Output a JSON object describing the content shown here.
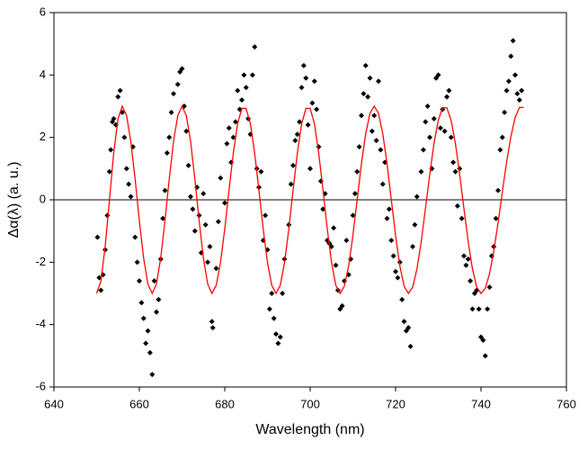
{
  "chart_data": {
    "type": "scatter",
    "xlabel": "Wavelength (nm)",
    "ylabel": "Δα(λ) (a. u.)",
    "xlim": [
      640,
      760
    ],
    "xticks": [
      640,
      660,
      680,
      700,
      720,
      740,
      760
    ],
    "ylim": [
      -6,
      6
    ],
    "yticks": [
      -6,
      -4,
      -2,
      0,
      2,
      4,
      6
    ],
    "hlines": [
      0
    ],
    "series": [
      {
        "type": "scatter",
        "color": "#000000",
        "x": [
          650.2,
          650.6,
          651,
          651.5,
          652,
          652.5,
          653,
          653.3,
          653.7,
          654,
          654.5,
          655,
          655.5,
          656,
          656.5,
          657,
          657.5,
          658,
          658.5,
          659,
          659.5,
          660,
          660.5,
          661,
          661.5,
          662,
          662.5,
          663,
          663.5,
          664,
          664.5,
          665,
          665.5,
          666,
          666.5,
          667,
          667.5,
          668,
          669,
          669.5,
          670,
          670.5,
          671,
          671.5,
          672,
          672.5,
          673,
          673.5,
          674,
          674.5,
          675,
          675.5,
          676,
          676.5,
          677,
          677.2,
          678,
          678.5,
          679,
          680,
          680.5,
          681,
          681.5,
          682,
          682.5,
          683,
          683.5,
          684,
          684.5,
          685,
          685.5,
          686,
          686.5,
          687,
          687.5,
          688,
          688.5,
          689,
          689.5,
          690,
          690.5,
          691,
          691.5,
          692,
          692.5,
          693,
          693.5,
          694,
          695,
          695.5,
          696,
          696.5,
          697,
          697.5,
          698,
          698.5,
          699,
          699.5,
          700,
          700.5,
          701,
          701.5,
          702,
          702.5,
          703,
          703.5,
          704,
          704.5,
          705,
          705.5,
          706,
          706.5,
          707,
          707.5,
          708,
          708.5,
          709,
          709.5,
          710,
          710.5,
          711,
          711.5,
          712,
          712.5,
          713,
          713.5,
          714,
          714.5,
          715,
          715.5,
          716,
          716.5,
          717,
          717.5,
          718,
          718.5,
          719,
          719.5,
          720,
          720.5,
          721,
          721.5,
          722,
          722.5,
          723,
          723.5,
          724,
          724.5,
          725,
          726,
          726.5,
          727,
          727.5,
          728,
          728.5,
          729,
          729.5,
          730,
          730.5,
          731,
          731.5,
          732,
          732.5,
          733,
          733.5,
          734,
          734.5,
          735,
          735.5,
          736,
          736.5,
          737,
          737.5,
          738,
          738.5,
          739,
          739.5,
          740,
          740.5,
          741,
          741.5,
          742,
          742.5,
          743,
          743.5,
          744,
          744.5,
          745,
          745.5,
          746,
          746.5,
          747,
          747.5,
          748,
          748.5,
          749,
          749.5
        ],
        "values": [
          -1.2,
          -2.5,
          -2.9,
          -2.4,
          -1.6,
          -0.5,
          0.9,
          1.6,
          2.5,
          2.6,
          2.4,
          3.3,
          3.5,
          2.8,
          2.0,
          1.0,
          0.5,
          0.1,
          1.7,
          -1.2,
          -2.0,
          -2.6,
          -3.3,
          -3.8,
          -4.6,
          -4.2,
          -4.9,
          -5.6,
          -2.6,
          -3.6,
          -3.2,
          -1.9,
          -0.6,
          0.3,
          1.5,
          2.0,
          2.8,
          3.4,
          3.7,
          4.1,
          4.2,
          3.0,
          2.2,
          1.1,
          0.1,
          -0.3,
          -1.0,
          0.4,
          -0.5,
          -1.7,
          0.2,
          -0.8,
          -2.0,
          -1.5,
          -3.9,
          -4.1,
          -2.2,
          -0.7,
          0.7,
          -0.1,
          1.8,
          2.3,
          1.2,
          2.0,
          2.5,
          3.5,
          2.9,
          3.2,
          4.0,
          3.6,
          2.6,
          2.1,
          4.0,
          4.9,
          1.0,
          0.4,
          0.9,
          -1.3,
          -0.5,
          -1.6,
          -3.5,
          -3.0,
          -3.8,
          -4.3,
          -4.6,
          -4.4,
          -3.0,
          -1.9,
          -0.8,
          0.5,
          1.1,
          1.9,
          2.1,
          2.5,
          3.6,
          4.3,
          3.9,
          2.4,
          1.0,
          3.1,
          3.8,
          2.9,
          1.7,
          0.6,
          -0.3,
          0.2,
          -1.3,
          -1.4,
          -1.5,
          -0.9,
          -2.1,
          -2.9,
          -3.5,
          -3.4,
          -2.6,
          -1.3,
          -2.4,
          -1.9,
          -0.5,
          0.2,
          0.9,
          1.7,
          2.7,
          3.4,
          4.3,
          3.3,
          3.9,
          2.2,
          2.7,
          1.9,
          3.8,
          1.6,
          0.5,
          1.2,
          -0.6,
          -0.3,
          -1.3,
          -1.8,
          -2.3,
          -2.5,
          -2.0,
          -3.2,
          -3.9,
          -4.2,
          -4.1,
          -4.7,
          -1.5,
          -0.8,
          0.1,
          0.9,
          1.6,
          2.5,
          3.0,
          2.0,
          1.0,
          2.6,
          3.9,
          4.0,
          2.3,
          2.9,
          2.2,
          3.3,
          3.5,
          2.0,
          1.2,
          0.9,
          -0.2,
          1.0,
          -0.6,
          -1.8,
          -2.1,
          -1.9,
          -2.6,
          -3.5,
          -3.0,
          -2.9,
          -3.5,
          -4.4,
          -4.5,
          -5.0,
          -3.5,
          -2.8,
          -1.8,
          -1.5,
          -0.6,
          0.3,
          1.6,
          2.0,
          2.8,
          3.5,
          3.8,
          4.6,
          5.1,
          4.0,
          3.4,
          3.2,
          3.5
        ]
      },
      {
        "type": "line",
        "color": "#ff0000",
        "x": [
          650,
          651,
          652,
          653,
          654,
          655,
          656,
          657,
          658,
          659,
          660,
          661,
          662,
          663,
          664,
          665,
          666,
          667,
          668,
          669,
          670,
          671,
          672,
          673,
          674,
          675,
          676,
          677,
          678,
          679,
          680,
          681,
          682,
          683,
          684,
          685,
          686,
          687,
          688,
          689,
          690,
          691,
          692,
          693,
          694,
          695,
          696,
          697,
          698,
          699,
          700,
          701,
          702,
          703,
          704,
          705,
          706,
          707,
          708,
          709,
          710,
          711,
          712,
          713,
          714,
          715,
          716,
          717,
          718,
          719,
          720,
          721,
          722,
          723,
          724,
          725,
          726,
          727,
          728,
          729,
          730,
          731,
          732,
          733,
          734,
          735,
          736,
          737,
          738,
          739,
          740,
          741,
          742,
          743,
          744,
          745,
          746,
          747,
          748,
          749,
          750
        ],
        "values": [
          -3,
          -2.6,
          -1.5,
          0,
          1.5,
          2.6,
          3,
          2.7,
          1.87,
          0.67,
          -0.67,
          -1.87,
          -2.7,
          -3,
          -2.7,
          -1.87,
          -0.67,
          0.67,
          1.87,
          2.7,
          3,
          2.7,
          1.87,
          0.67,
          -0.67,
          -1.87,
          -2.7,
          -3,
          -2.74,
          -2.01,
          -0.93,
          0.31,
          1.5,
          2.43,
          2.93,
          2.93,
          2.43,
          1.5,
          0.31,
          -0.93,
          -2.01,
          -2.74,
          -3,
          -2.74,
          -2.01,
          -0.93,
          0.31,
          1.5,
          2.43,
          2.93,
          2.93,
          2.43,
          1.5,
          0.31,
          -0.93,
          -2.01,
          -2.74,
          -3,
          -2.77,
          -2.12,
          -1.15,
          0,
          1.15,
          2.12,
          2.77,
          3,
          2.77,
          2.12,
          1.15,
          0,
          -1.15,
          -2.12,
          -2.77,
          -3,
          -2.8,
          -2.22,
          -1.34,
          -0.28,
          0.82,
          1.81,
          2.55,
          2.95,
          2.95,
          2.55,
          1.81,
          0.82,
          -0.28,
          -1.34,
          -2.22,
          -2.8,
          -3,
          -2.84,
          -2.37,
          -1.64,
          -0.74,
          0.25,
          1.21,
          2.03,
          2.64,
          2.96,
          2.96
        ]
      }
    ]
  }
}
